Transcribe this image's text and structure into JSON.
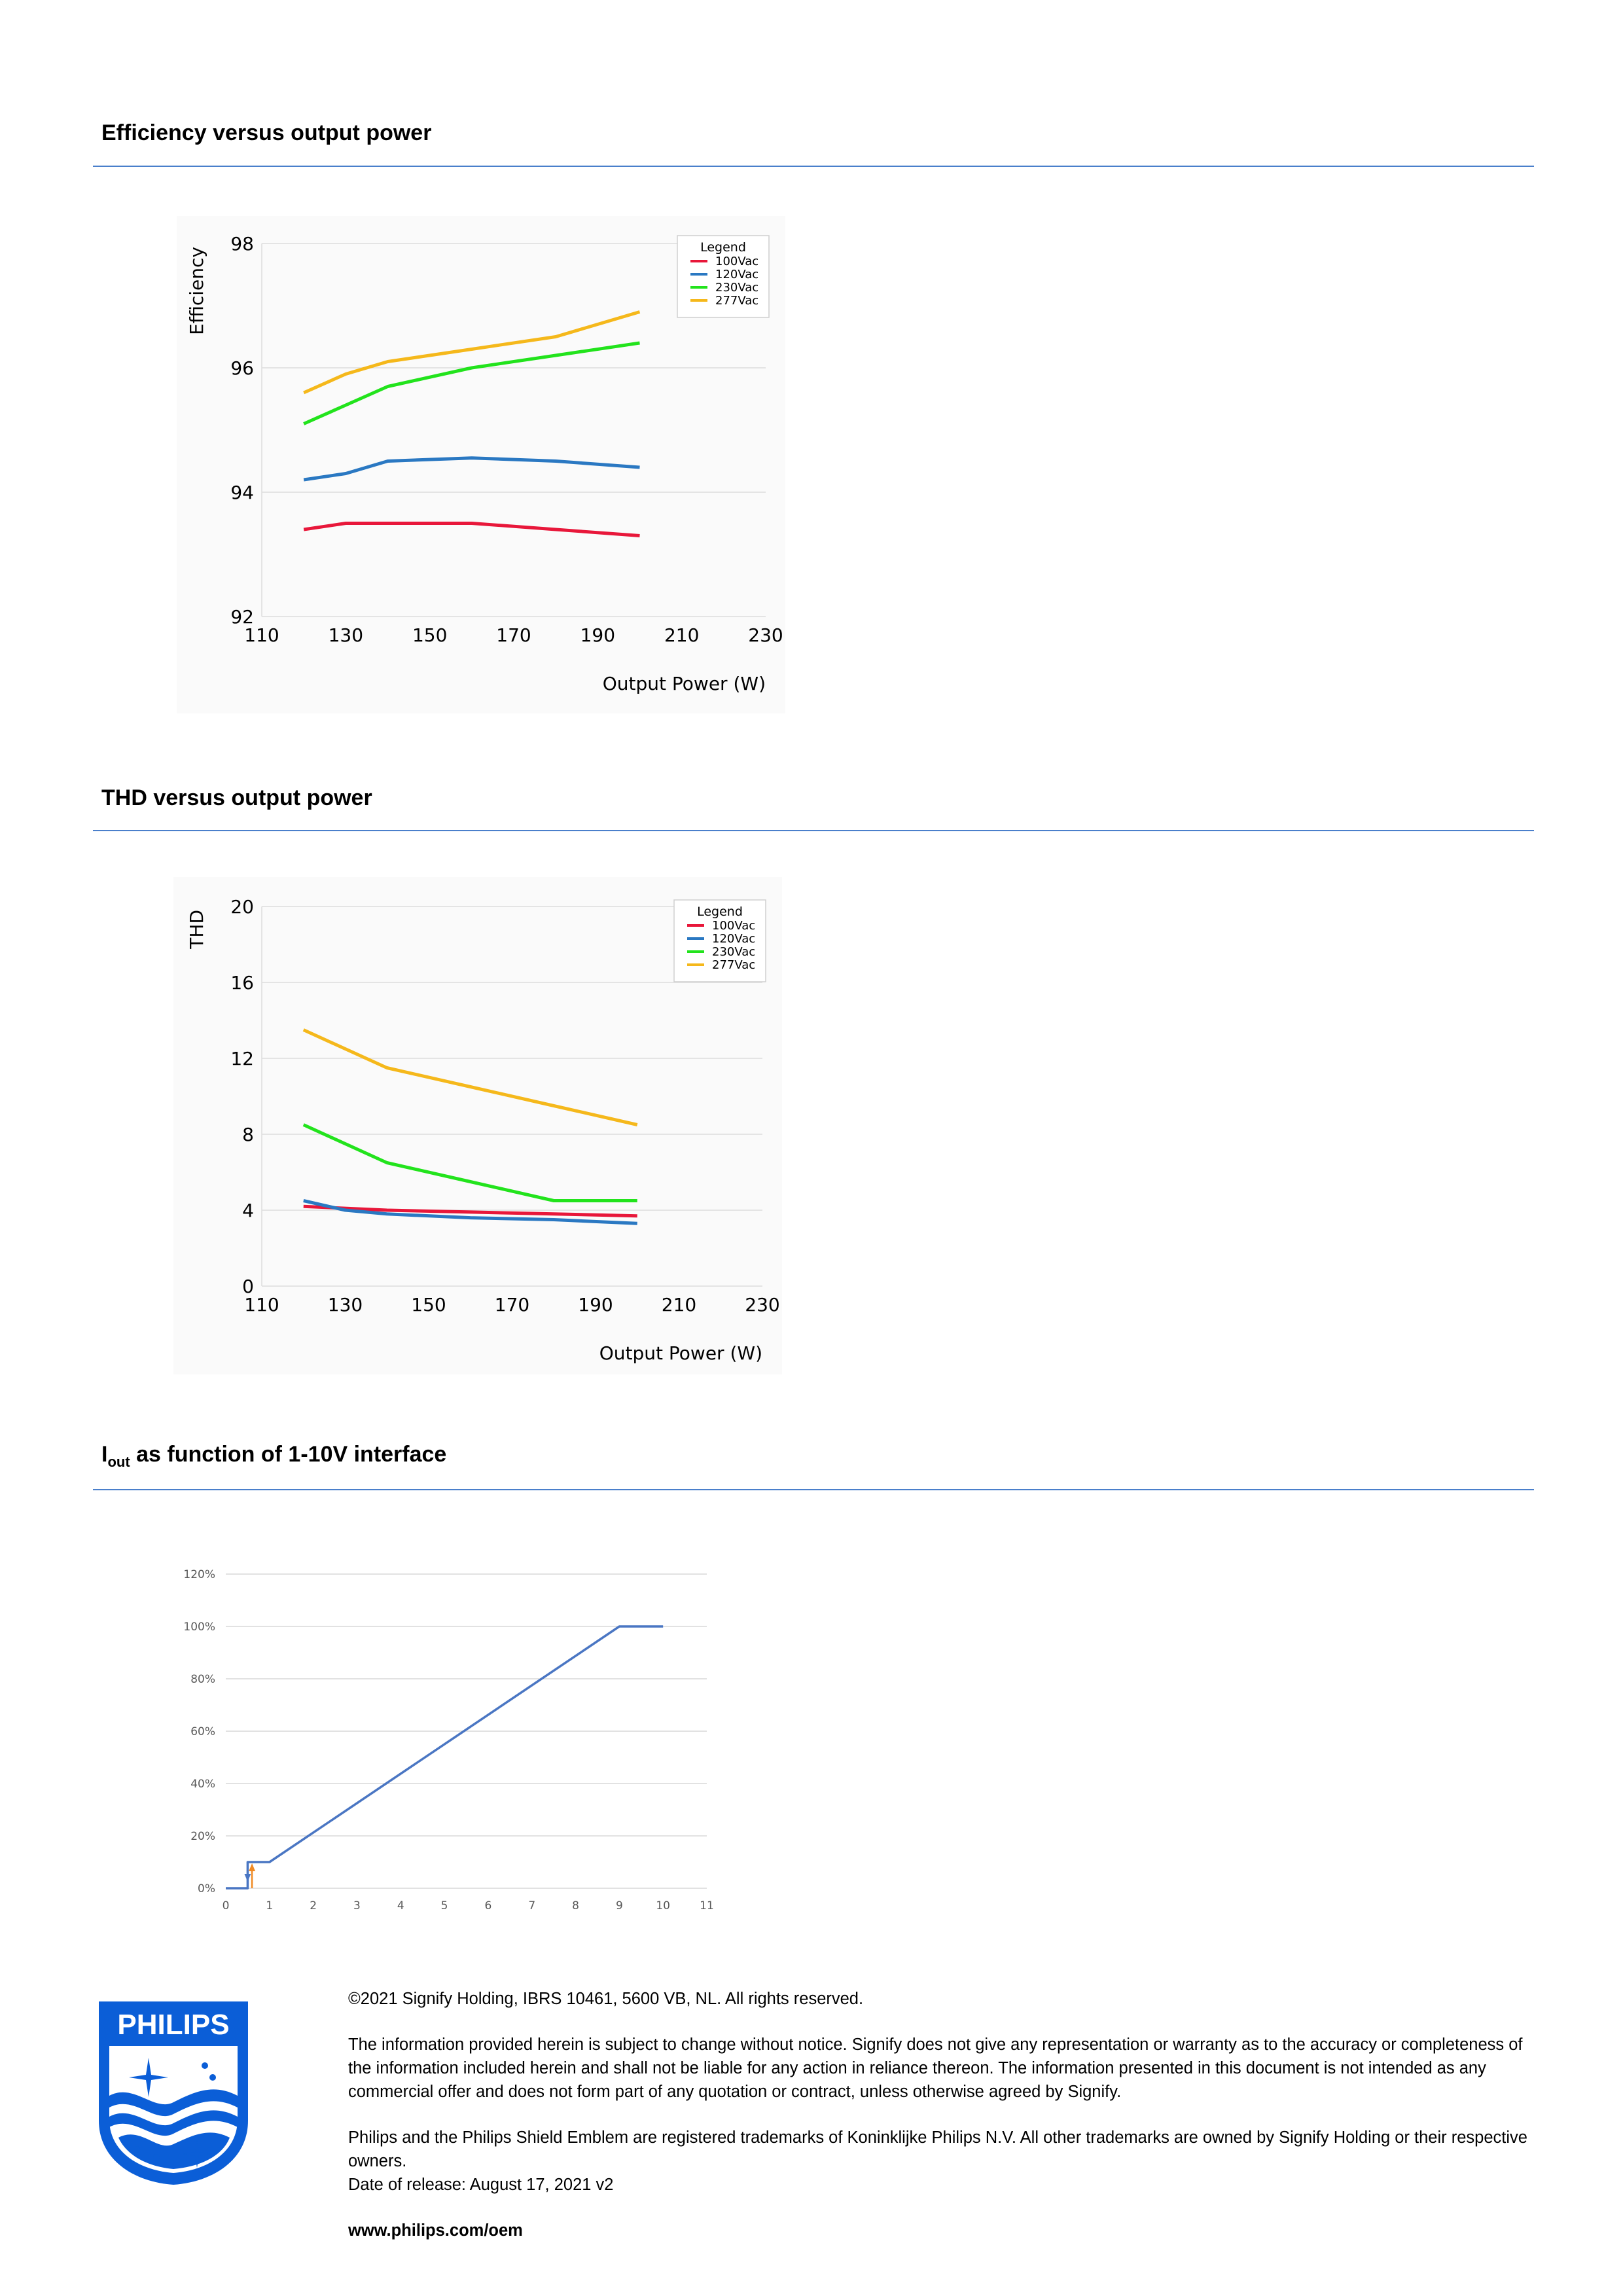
{
  "sections": {
    "efficiency_title": "Efficiency versus output power",
    "thd_title": "THD versus output power",
    "iout_title_main": "I",
    "iout_title_sub": "out",
    "iout_title_rest": " as function of 1-10V interface"
  },
  "colors": {
    "rule": "#4a7fcb",
    "s100": "#e8173a",
    "s120": "#2a78c2",
    "s230": "#22e31c",
    "s277": "#f5b81b",
    "iout": "#4a76c3",
    "brand": "#0b5ed7"
  },
  "chart_data": [
    {
      "type": "line",
      "title": "",
      "xlabel": "Output Power (W)",
      "ylabel": "Efficiency",
      "xlim": [
        110,
        230
      ],
      "ylim": [
        92,
        98
      ],
      "xticks": [
        110,
        130,
        150,
        170,
        190,
        210,
        230
      ],
      "yticks": [
        92,
        94,
        96,
        98
      ],
      "grid": true,
      "legend_title": "Legend",
      "legend_position": "top-right",
      "series": [
        {
          "name": "100Vac",
          "color": "#e8173a",
          "x": [
            120,
            130,
            140,
            160,
            180,
            200
          ],
          "values": [
            93.4,
            93.5,
            93.5,
            93.5,
            93.4,
            93.3
          ]
        },
        {
          "name": "120Vac",
          "color": "#2a78c2",
          "x": [
            120,
            130,
            140,
            160,
            180,
            200
          ],
          "values": [
            94.2,
            94.3,
            94.5,
            94.55,
            94.5,
            94.4
          ]
        },
        {
          "name": "230Vac",
          "color": "#22e31c",
          "x": [
            120,
            130,
            140,
            160,
            180,
            200
          ],
          "values": [
            95.1,
            95.4,
            95.7,
            96.0,
            96.2,
            96.4
          ]
        },
        {
          "name": "277Vac",
          "color": "#f5b81b",
          "x": [
            120,
            130,
            140,
            160,
            180,
            200
          ],
          "values": [
            95.6,
            95.9,
            96.1,
            96.3,
            96.5,
            96.9
          ]
        }
      ]
    },
    {
      "type": "line",
      "title": "",
      "xlabel": "Output Power (W)",
      "ylabel": "THD",
      "xlim": [
        110,
        230
      ],
      "ylim": [
        0,
        20
      ],
      "xticks": [
        110,
        130,
        150,
        170,
        190,
        210,
        230
      ],
      "yticks": [
        0,
        4,
        8,
        12,
        16,
        20
      ],
      "grid": true,
      "legend_title": "Legend",
      "legend_position": "top-right",
      "series": [
        {
          "name": "100Vac",
          "color": "#e8173a",
          "x": [
            120,
            140,
            160,
            180,
            200
          ],
          "values": [
            4.2,
            4.0,
            3.9,
            3.8,
            3.7
          ]
        },
        {
          "name": "120Vac",
          "color": "#2a78c2",
          "x": [
            120,
            130,
            140,
            160,
            180,
            200
          ],
          "values": [
            4.5,
            4.0,
            3.8,
            3.6,
            3.5,
            3.3
          ]
        },
        {
          "name": "230Vac",
          "color": "#22e31c",
          "x": [
            120,
            140,
            160,
            180,
            200
          ],
          "values": [
            8.5,
            6.5,
            5.5,
            4.5,
            4.5
          ]
        },
        {
          "name": "277Vac",
          "color": "#f5b81b",
          "x": [
            120,
            140,
            160,
            180,
            200
          ],
          "values": [
            13.5,
            11.5,
            10.5,
            9.5,
            8.5
          ]
        }
      ]
    },
    {
      "type": "line",
      "title": "",
      "xlabel": "",
      "ylabel": "",
      "xlim": [
        0,
        11
      ],
      "ylim": [
        0,
        120
      ],
      "xticks": [
        "0",
        "1",
        "2",
        "3",
        "4",
        "5",
        "6",
        "7",
        "8",
        "9",
        "10",
        "11"
      ],
      "yticks": [
        "0%",
        "20%",
        "40%",
        "60%",
        "80%",
        "100%",
        "120%"
      ],
      "grid": true,
      "series": [
        {
          "color": "#4a76c3",
          "x": [
            0,
            0.5,
            0.5,
            1.0,
            9.0,
            10.0
          ],
          "values": [
            0,
            0,
            10,
            10,
            100,
            100
          ]
        }
      ],
      "annotations": [
        {
          "type": "arrow-down",
          "color": "#4a76c3",
          "x": 0.5
        },
        {
          "type": "arrow-up",
          "color": "#f08a24",
          "x": 0.6
        }
      ]
    }
  ],
  "footer": {
    "copyright": "©2021 Signify Holding, IBRS 10461, 5600 VB, NL. All rights reserved.",
    "disclaimer": "The information provided herein is subject to change without notice. Signify does not give any representation or warranty as to the accuracy or completeness of the information included herein and shall not be liable for any action in reliance thereon. The information presented in this document is not intended as any commercial offer and does not form part of any quotation or contract, unless otherwise agreed by Signify.",
    "trademarks": "Philips and the Philips Shield Emblem are registered trademarks of Koninklijke Philips N.V. All other trademarks are owned by Signify Holding or their respective owners.",
    "release": "Date of release: August 17, 2021 v2",
    "website": "www.philips.com/oem",
    "logo_text": "PHILIPS"
  }
}
